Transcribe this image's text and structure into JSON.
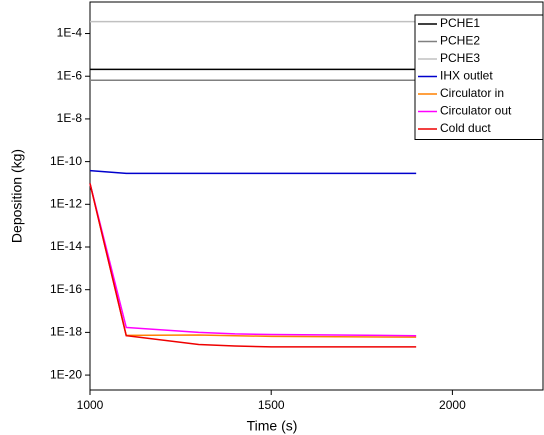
{
  "chart_data": {
    "type": "line",
    "xlabel": "Time (s)",
    "ylabel": "Deposition (kg)",
    "x": [
      1000,
      1100,
      1300,
      1400,
      1500,
      1900
    ],
    "series": [
      {
        "name": "PCHE1",
        "color": "#000000",
        "values": [
          2.1e-06,
          2.1e-06,
          2.1e-06,
          2.1e-06,
          2.1e-06,
          2.1e-06
        ]
      },
      {
        "name": "PCHE2",
        "color": "#808080",
        "values": [
          6.5e-07,
          6.5e-07,
          6.5e-07,
          6.5e-07,
          6.5e-07,
          6.5e-07
        ]
      },
      {
        "name": "PCHE3",
        "color": "#c0c0c0",
        "values": [
          0.00036,
          0.00036,
          0.00036,
          0.00036,
          0.00036,
          0.00036
        ]
      },
      {
        "name": "IHX outlet",
        "color": "#0000cc",
        "values": [
          3.8e-11,
          2.8e-11,
          2.8e-11,
          2.8e-11,
          2.8e-11,
          2.8e-11
        ]
      },
      {
        "name": "Circulator in",
        "color": "#ff8000",
        "values": [
          9.5e-12,
          7.2e-19,
          7.5e-19,
          7e-19,
          6.5e-19,
          6e-19
        ]
      },
      {
        "name": "Circulator out",
        "color": "#ff00ff",
        "values": [
          9.5e-12,
          1.7e-18,
          1e-18,
          8.5e-19,
          8e-19,
          7e-19
        ]
      },
      {
        "name": "Cold duct",
        "color": "#ee0000",
        "values": [
          9.5e-12,
          7e-19,
          2.7e-19,
          2.3e-19,
          2.1e-19,
          2.1e-19
        ]
      }
    ],
    "xlim": [
      1000,
      2250
    ],
    "xticks": [
      1000,
      1500,
      2000
    ],
    "ylim": [
      2e-21,
      0.003
    ],
    "ylog": true,
    "yticks": [
      {
        "value": 1e-20,
        "label": "1E-20"
      },
      {
        "value": 1e-18,
        "label": "1E-18"
      },
      {
        "value": 1e-16,
        "label": "1E-16"
      },
      {
        "value": 1e-14,
        "label": "1E-14"
      },
      {
        "value": 1e-12,
        "label": "1E-12"
      },
      {
        "value": 1e-10,
        "label": "1E-10"
      },
      {
        "value": 1e-08,
        "label": "1E-8"
      },
      {
        "value": 1e-06,
        "label": "1E-6"
      },
      {
        "value": 0.0001,
        "label": "1E-4"
      }
    ],
    "legend": "upper right"
  }
}
